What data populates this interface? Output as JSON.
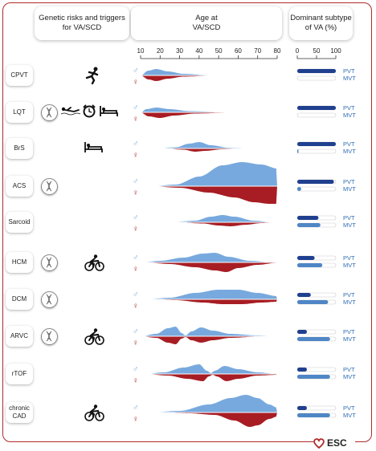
{
  "headers": {
    "genetic": "Genetic risks and triggers\nfor VA/SCD",
    "age": "Age at\nVA/SCD",
    "subtype": "Dominant subtype\nof VA (%)"
  },
  "age_ticks": [
    "10",
    "20",
    "30",
    "40",
    "50",
    "60",
    "70",
    "80"
  ],
  "pct_ticks": [
    "0",
    "50",
    "100"
  ],
  "sex_symbols": {
    "male": "♂",
    "female": "♀"
  },
  "subtype_labels": {
    "pvt": "PVT",
    "mvt": "MVT"
  },
  "logo": {
    "text": "ESC"
  },
  "colors": {
    "male": "#78a9de",
    "female": "#a71d23",
    "bar_dark": "#1f3f8f",
    "bar_light": "#4f86c6",
    "frame": "#b22a2a"
  },
  "rows": [
    {
      "label": "CPVT",
      "dna": false,
      "triggers": [
        "running-person-icon"
      ],
      "pvt": 100,
      "mvt": 0,
      "male_peak_age": 18,
      "female_peak_age": 18
    },
    {
      "label": "LQT",
      "dna": true,
      "triggers": [
        "swimmer-icon",
        "alarm-clock-icon",
        "bed-icon"
      ],
      "pvt": 100,
      "mvt": 0,
      "male_peak_age": 17,
      "female_peak_age": 20
    },
    {
      "label": "BrS",
      "dna": false,
      "triggers": [
        "bed-icon"
      ],
      "pvt": 100,
      "mvt": 3,
      "male_peak_age": 38,
      "female_peak_age": 40
    },
    {
      "label": "ACS",
      "dna": true,
      "triggers": [],
      "pvt": 95,
      "mvt": 10,
      "male_peak_age": 62,
      "female_peak_age": 72
    },
    {
      "label": "Sarcoid",
      "dna": false,
      "triggers": [],
      "pvt": 55,
      "mvt": 60,
      "male_peak_age": 50,
      "female_peak_age": 55
    },
    {
      "label": "HCM",
      "dna": true,
      "triggers": [
        "cyclist-icon"
      ],
      "pvt": 45,
      "mvt": 65,
      "male_peak_age": 45,
      "female_peak_age": 50
    },
    {
      "label": "DCM",
      "dna": true,
      "triggers": [],
      "pvt": 35,
      "mvt": 80,
      "male_peak_age": 55,
      "female_peak_age": 55
    },
    {
      "label": "ARVC",
      "dna": true,
      "triggers": [
        "cyclist-icon"
      ],
      "pvt": 25,
      "mvt": 85,
      "male_peak_age": 28,
      "female_peak_age": 28
    },
    {
      "label": "rTOF",
      "dna": false,
      "triggers": [],
      "pvt": 25,
      "mvt": 85,
      "male_peak_age": 40,
      "female_peak_age": 45
    },
    {
      "label": "chronic\nCAD",
      "dna": false,
      "triggers": [
        "cyclist-icon"
      ],
      "pvt": 25,
      "mvt": 85,
      "male_peak_age": 65,
      "female_peak_age": 68
    }
  ]
}
